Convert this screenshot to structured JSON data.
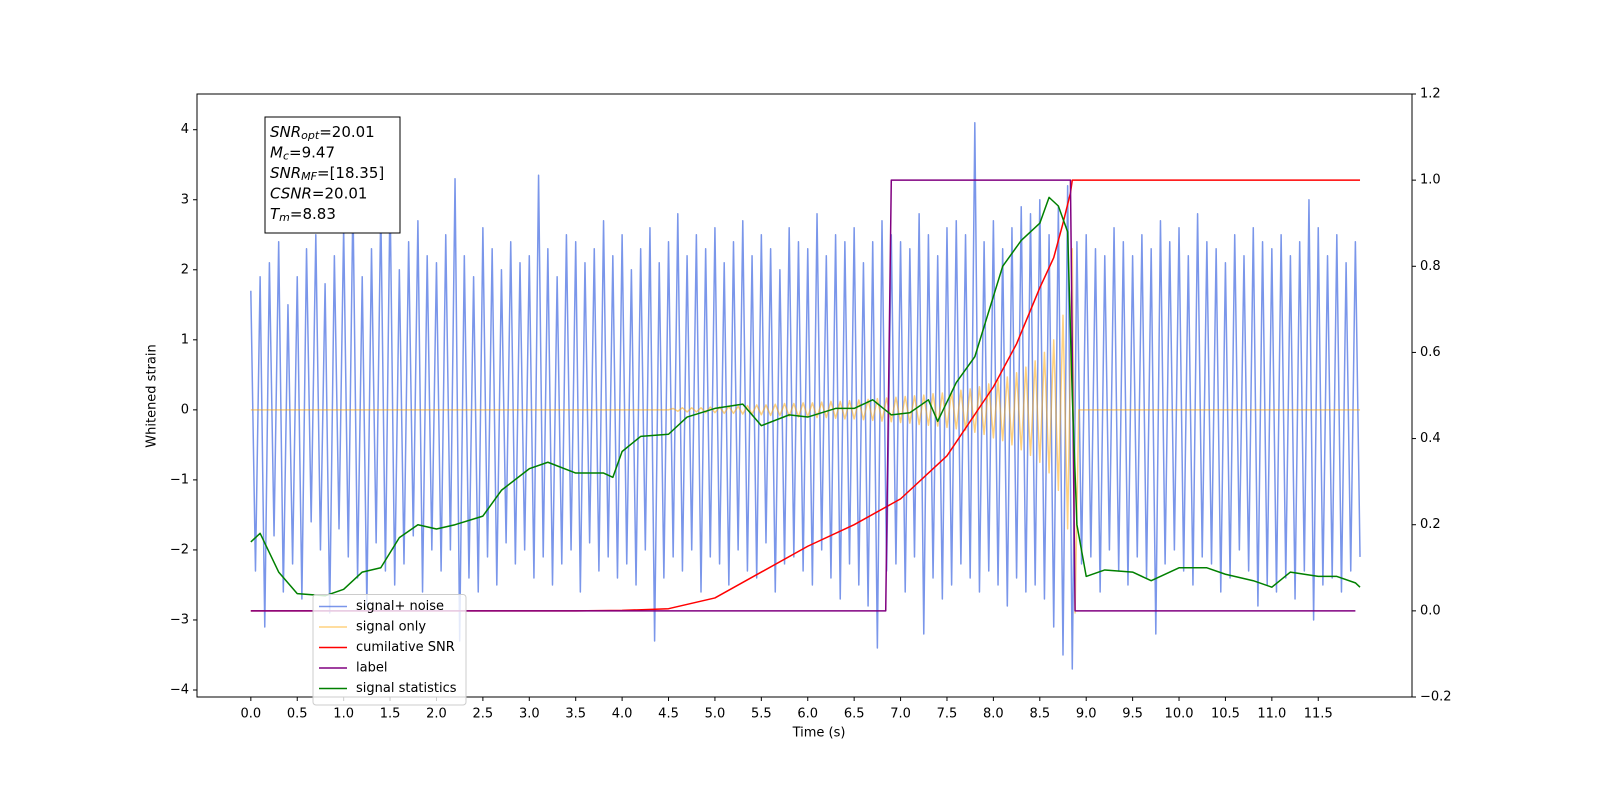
{
  "chart_data": {
    "type": "line",
    "xlabel": "Time (s)",
    "ylabel": "Whitened strain",
    "xlim": [
      -0.58,
      12.51
    ],
    "ylim": [
      -4.1,
      4.51
    ],
    "y2lim": [
      -0.2,
      1.2
    ],
    "xticks": [
      {
        "value": 0,
        "label": "0.0"
      },
      0.5,
      {
        "value": 1,
        "label": "1.0"
      },
      1.5,
      {
        "value": 2,
        "label": "2.0"
      },
      2.5,
      {
        "value": 3,
        "label": "3.0"
      },
      3.5,
      {
        "value": 4,
        "label": "4.0"
      },
      4.5,
      {
        "value": 5,
        "label": "5.0"
      },
      5.5,
      {
        "value": 6,
        "label": "6.0"
      },
      6.5,
      {
        "value": 7,
        "label": "7.0"
      },
      7.5,
      {
        "value": 8,
        "label": "8.0"
      },
      8.5,
      {
        "value": 9,
        "label": "9.0"
      },
      9.5,
      {
        "value": 10,
        "label": "10.0"
      },
      10.5,
      {
        "value": 11,
        "label": "11.0"
      },
      11.5
    ],
    "yticks": [
      {
        "value": -4,
        "label": "−4"
      },
      {
        "value": -3,
        "label": "−3"
      },
      {
        "value": -2,
        "label": "−2"
      },
      {
        "value": -1,
        "label": "−1"
      },
      0,
      1,
      2,
      3,
      4
    ],
    "y2ticks": [
      {
        "value": -0.2,
        "label": "−0.2"
      },
      {
        "value": 0,
        "label": "0.0"
      },
      0.2,
      0.4,
      0.6,
      0.8,
      {
        "value": 1,
        "label": "1.0"
      },
      1.2
    ],
    "legend": "lower left",
    "annotation": [
      {
        "symbol": "SNR",
        "subscript": "opt",
        "text": "=20.01"
      },
      {
        "symbol": "M",
        "subscript": "c",
        "text": "=9.47"
      },
      {
        "symbol": "SNR",
        "subscript": "MF",
        "text": "=[18.35]"
      },
      {
        "symbol": "CSNR",
        "text": "=20.01"
      },
      {
        "symbol": "T",
        "subscript": "m",
        "text": "=8.83"
      }
    ],
    "series": [
      {
        "name": "signal+ noise",
        "color": "#4169e1",
        "alpha": 0.7,
        "axis": "y",
        "x": [
          0,
          0.05,
          0.1,
          0.15,
          0.2,
          0.25,
          0.3,
          0.35,
          0.4,
          0.45,
          0.5,
          0.55,
          0.6,
          0.65,
          0.7,
          0.75,
          0.8,
          0.85,
          0.9,
          0.95,
          1,
          1.05,
          1.1,
          1.15,
          1.2,
          1.25,
          1.3,
          1.35,
          1.4,
          1.45,
          1.5,
          1.55,
          1.6,
          1.65,
          1.7,
          1.75,
          1.8,
          1.85,
          1.9,
          1.95,
          2,
          2.05,
          2.1,
          2.15,
          2.2,
          2.25,
          2.3,
          2.35,
          2.4,
          2.45,
          2.5,
          2.55,
          2.6,
          2.65,
          2.7,
          2.75,
          2.8,
          2.85,
          2.9,
          2.95,
          3,
          3.05,
          3.1,
          3.15,
          3.2,
          3.25,
          3.3,
          3.35,
          3.4,
          3.45,
          3.5,
          3.55,
          3.6,
          3.65,
          3.7,
          3.75,
          3.8,
          3.85,
          3.9,
          3.95,
          4,
          4.05,
          4.1,
          4.15,
          4.2,
          4.25,
          4.3,
          4.35,
          4.4,
          4.45,
          4.5,
          4.55,
          4.6,
          4.65,
          4.7,
          4.75,
          4.8,
          4.85,
          4.9,
          4.95,
          5,
          5.05,
          5.1,
          5.15,
          5.2,
          5.25,
          5.3,
          5.35,
          5.4,
          5.45,
          5.5,
          5.55,
          5.6,
          5.65,
          5.7,
          5.75,
          5.8,
          5.85,
          5.9,
          5.95,
          6,
          6.05,
          6.1,
          6.15,
          6.2,
          6.25,
          6.3,
          6.35,
          6.4,
          6.45,
          6.5,
          6.55,
          6.6,
          6.65,
          6.7,
          6.75,
          6.8,
          6.85,
          6.9,
          6.95,
          7,
          7.05,
          7.1,
          7.15,
          7.2,
          7.25,
          7.3,
          7.35,
          7.4,
          7.45,
          7.5,
          7.55,
          7.6,
          7.65,
          7.7,
          7.75,
          7.8,
          7.85,
          7.9,
          7.95,
          8,
          8.05,
          8.1,
          8.15,
          8.2,
          8.25,
          8.3,
          8.35,
          8.4,
          8.45,
          8.5,
          8.55,
          8.6,
          8.65,
          8.7,
          8.75,
          8.8,
          8.85,
          8.9,
          8.95,
          9,
          9.05,
          9.1,
          9.15,
          9.2,
          9.25,
          9.3,
          9.35,
          9.4,
          9.45,
          9.5,
          9.55,
          9.6,
          9.65,
          9.7,
          9.75,
          9.8,
          9.85,
          9.9,
          9.95,
          10,
          10.05,
          10.1,
          10.15,
          10.2,
          10.25,
          10.3,
          10.35,
          10.4,
          10.45,
          10.5,
          10.55,
          10.6,
          10.65,
          10.7,
          10.75,
          10.8,
          10.85,
          10.9,
          10.95,
          11,
          11.05,
          11.1,
          11.15,
          11.2,
          11.25,
          11.3,
          11.35,
          11.4,
          11.45,
          11.5,
          11.55,
          11.6,
          11.65,
          11.7,
          11.75,
          11.8,
          11.85,
          11.9,
          11.95
        ],
        "values": [
          1.7,
          -2.3,
          1.9,
          -3.1,
          2.1,
          -1.8,
          2.4,
          -2.6,
          1.5,
          -2.2,
          1.9,
          -2.7,
          2.3,
          -1.6,
          2.5,
          -2.0,
          1.8,
          -2.9,
          2.2,
          -1.7,
          2.6,
          -2.1,
          3.0,
          -2.4,
          1.9,
          -2.8,
          2.3,
          -1.9,
          2.9,
          -2.3,
          3.1,
          -2.5,
          2.0,
          -2.2,
          2.4,
          -1.8,
          2.7,
          -2.6,
          2.2,
          -2.0,
          2.1,
          -2.3,
          2.5,
          -2.0,
          3.3,
          -3.3,
          2.2,
          -2.4,
          1.9,
          -2.6,
          2.6,
          -2.1,
          2.3,
          -2.5,
          2.0,
          -1.9,
          2.4,
          -2.2,
          2.1,
          -2.0,
          2.2,
          -2.4,
          3.35,
          -2.1,
          2.3,
          -2.5,
          1.9,
          -2.2,
          2.5,
          -2.0,
          2.4,
          -2.6,
          2.1,
          -1.9,
          2.3,
          -2.3,
          2.7,
          -2.1,
          2.2,
          -2.4,
          2.5,
          -2.2,
          2.0,
          -2.5,
          2.3,
          -2.0,
          2.6,
          -3.3,
          2.1,
          -2.4,
          2.4,
          -2.1,
          2.8,
          -2.3,
          2.2,
          -2.0,
          2.5,
          -2.6,
          2.3,
          -2.1,
          2.6,
          -2.2,
          2.1,
          -2.5,
          2.4,
          -2.0,
          2.7,
          -2.3,
          2.2,
          -2.4,
          2.5,
          -1.9,
          2.3,
          -2.6,
          2.0,
          -2.2,
          2.6,
          -2.1,
          2.4,
          -2.3,
          2.3,
          -2.5,
          2.8,
          -2.0,
          2.2,
          -2.4,
          2.5,
          -2.7,
          2.4,
          -2.2,
          2.6,
          -2.5,
          2.1,
          -2.8,
          2.4,
          -3.4,
          2.7,
          -2.3,
          2.5,
          -2.2,
          2.4,
          -2.6,
          2.3,
          -2.1,
          2.8,
          -3.2,
          2.5,
          -2.4,
          2.2,
          -2.7,
          2.6,
          -2.5,
          2.7,
          -2.2,
          2.5,
          -2.4,
          4.1,
          -2.6,
          2.4,
          -2.3,
          2.7,
          -2.5,
          2.3,
          -2.8,
          2.6,
          -2.4,
          2.9,
          -2.6,
          2.8,
          -2.5,
          3.0,
          -2.7,
          2.5,
          -3.1,
          2.9,
          -3.5,
          3.2,
          -3.7,
          2.4,
          -2.2,
          2.5,
          -2.1,
          2.3,
          -2.6,
          2.2,
          -2.0,
          2.6,
          -2.3,
          2.4,
          -2.5,
          2.2,
          -2.1,
          2.5,
          -2.4,
          2.3,
          -3.2,
          2.7,
          -2.2,
          2.4,
          -2.0,
          2.6,
          -2.3,
          2.2,
          -2.5,
          2.8,
          -2.1,
          2.4,
          -2.2,
          2.3,
          -2.6,
          2.1,
          -2.4,
          2.5,
          -2.0,
          2.2,
          -2.3,
          2.6,
          -2.8,
          2.4,
          -2.5,
          2.3,
          -2.6,
          2.5,
          -2.4,
          2.2,
          -2.7,
          2.4,
          -2.3,
          3.0,
          -3.0,
          2.6,
          -2.5,
          2.2,
          -2.4,
          2.5,
          -2.6,
          2.1,
          -2.3,
          2.4,
          -2.1
        ]
      },
      {
        "name": "signal only",
        "color": "#ffa500",
        "alpha": 0.5,
        "axis": "y",
        "x": [
          0,
          4.5,
          4.55,
          4.6,
          4.65,
          4.7,
          4.75,
          4.8,
          4.85,
          4.9,
          4.95,
          5,
          5.05,
          5.1,
          5.15,
          5.2,
          5.25,
          5.3,
          5.35,
          5.4,
          5.45,
          5.5,
          5.55,
          5.6,
          5.65,
          5.7,
          5.75,
          5.8,
          5.85,
          5.9,
          5.95,
          6,
          6.05,
          6.1,
          6.15,
          6.2,
          6.25,
          6.3,
          6.35,
          6.4,
          6.45,
          6.5,
          6.55,
          6.6,
          6.65,
          6.7,
          6.75,
          6.8,
          6.85,
          6.9,
          6.95,
          7,
          7.05,
          7.1,
          7.15,
          7.2,
          7.25,
          7.3,
          7.35,
          7.4,
          7.45,
          7.5,
          7.55,
          7.6,
          7.65,
          7.7,
          7.75,
          7.8,
          7.85,
          7.9,
          7.95,
          8,
          8.05,
          8.1,
          8.15,
          8.2,
          8.25,
          8.3,
          8.35,
          8.4,
          8.45,
          8.5,
          8.55,
          8.6,
          8.65,
          8.7,
          8.75,
          8.8,
          8.85,
          8.88,
          8.92,
          11.95
        ],
        "values": [
          0,
          0,
          0.02,
          -0.02,
          0.03,
          -0.03,
          0.03,
          -0.03,
          0.03,
          -0.04,
          0.04,
          -0.04,
          0.04,
          -0.05,
          0.05,
          -0.05,
          0.05,
          -0.06,
          0.06,
          -0.06,
          0.07,
          -0.07,
          0.07,
          -0.08,
          0.08,
          -0.08,
          0.09,
          -0.09,
          0.09,
          -0.1,
          0.1,
          -0.1,
          0.1,
          -0.11,
          0.11,
          -0.11,
          0.12,
          -0.12,
          0.12,
          -0.13,
          0.13,
          -0.13,
          0.14,
          -0.14,
          0.15,
          -0.15,
          0.16,
          -0.16,
          0.17,
          -0.17,
          0.18,
          -0.18,
          0.19,
          -0.19,
          0.2,
          -0.21,
          0.21,
          -0.22,
          0.23,
          -0.23,
          0.24,
          -0.25,
          0.26,
          -0.27,
          0.28,
          -0.29,
          0.3,
          -0.32,
          0.33,
          -0.35,
          0.37,
          -0.4,
          0.42,
          -0.44,
          0.47,
          -0.5,
          0.53,
          -0.57,
          0.61,
          -0.65,
          0.7,
          -0.75,
          0.82,
          -0.9,
          1.0,
          -1.15,
          1.35,
          -1.7,
          2.3,
          -2.9,
          0,
          0
        ]
      },
      {
        "name": "cumilative SNR",
        "color": "#ff0000",
        "axis": "y2",
        "x": [
          0,
          3.5,
          4.0,
          4.5,
          5.0,
          5.5,
          6.0,
          6.5,
          7.0,
          7.5,
          8.0,
          8.25,
          8.5,
          8.65,
          8.75,
          8.83,
          8.85,
          11.95
        ],
        "values": [
          0,
          0,
          0.001,
          0.005,
          0.03,
          0.09,
          0.15,
          0.2,
          0.26,
          0.36,
          0.52,
          0.62,
          0.75,
          0.82,
          0.9,
          0.97,
          1.0,
          1.0
        ]
      },
      {
        "name": "label",
        "color": "#800080",
        "axis": "y2",
        "x": [
          0,
          6.84,
          6.9,
          8.83,
          8.88,
          11.9
        ],
        "values": [
          0,
          0,
          1,
          1,
          0,
          0
        ]
      },
      {
        "name": "signal statistics",
        "color": "#008000",
        "axis": "y2",
        "x": [
          0,
          0.1,
          0.3,
          0.5,
          0.8,
          1.0,
          1.2,
          1.4,
          1.6,
          1.8,
          2.0,
          2.2,
          2.5,
          2.7,
          3.0,
          3.2,
          3.5,
          3.8,
          3.9,
          4.0,
          4.2,
          4.5,
          4.7,
          5.0,
          5.3,
          5.5,
          5.8,
          6.0,
          6.3,
          6.5,
          6.7,
          6.9,
          7.1,
          7.3,
          7.4,
          7.6,
          7.8,
          8.0,
          8.1,
          8.3,
          8.5,
          8.6,
          8.7,
          8.8,
          8.85,
          8.9,
          9.0,
          9.2,
          9.5,
          9.7,
          10.0,
          10.3,
          10.5,
          10.8,
          11.0,
          11.2,
          11.5,
          11.7,
          11.9,
          11.95
        ],
        "values": [
          0.16,
          0.18,
          0.09,
          0.04,
          0.035,
          0.05,
          0.09,
          0.1,
          0.17,
          0.2,
          0.19,
          0.2,
          0.22,
          0.28,
          0.33,
          0.345,
          0.32,
          0.32,
          0.31,
          0.37,
          0.405,
          0.41,
          0.45,
          0.47,
          0.48,
          0.43,
          0.455,
          0.45,
          0.47,
          0.47,
          0.49,
          0.455,
          0.46,
          0.49,
          0.44,
          0.53,
          0.59,
          0.73,
          0.8,
          0.86,
          0.9,
          0.96,
          0.94,
          0.88,
          0.5,
          0.2,
          0.08,
          0.095,
          0.09,
          0.07,
          0.1,
          0.1,
          0.085,
          0.07,
          0.055,
          0.09,
          0.08,
          0.08,
          0.065,
          0.055
        ]
      }
    ]
  }
}
